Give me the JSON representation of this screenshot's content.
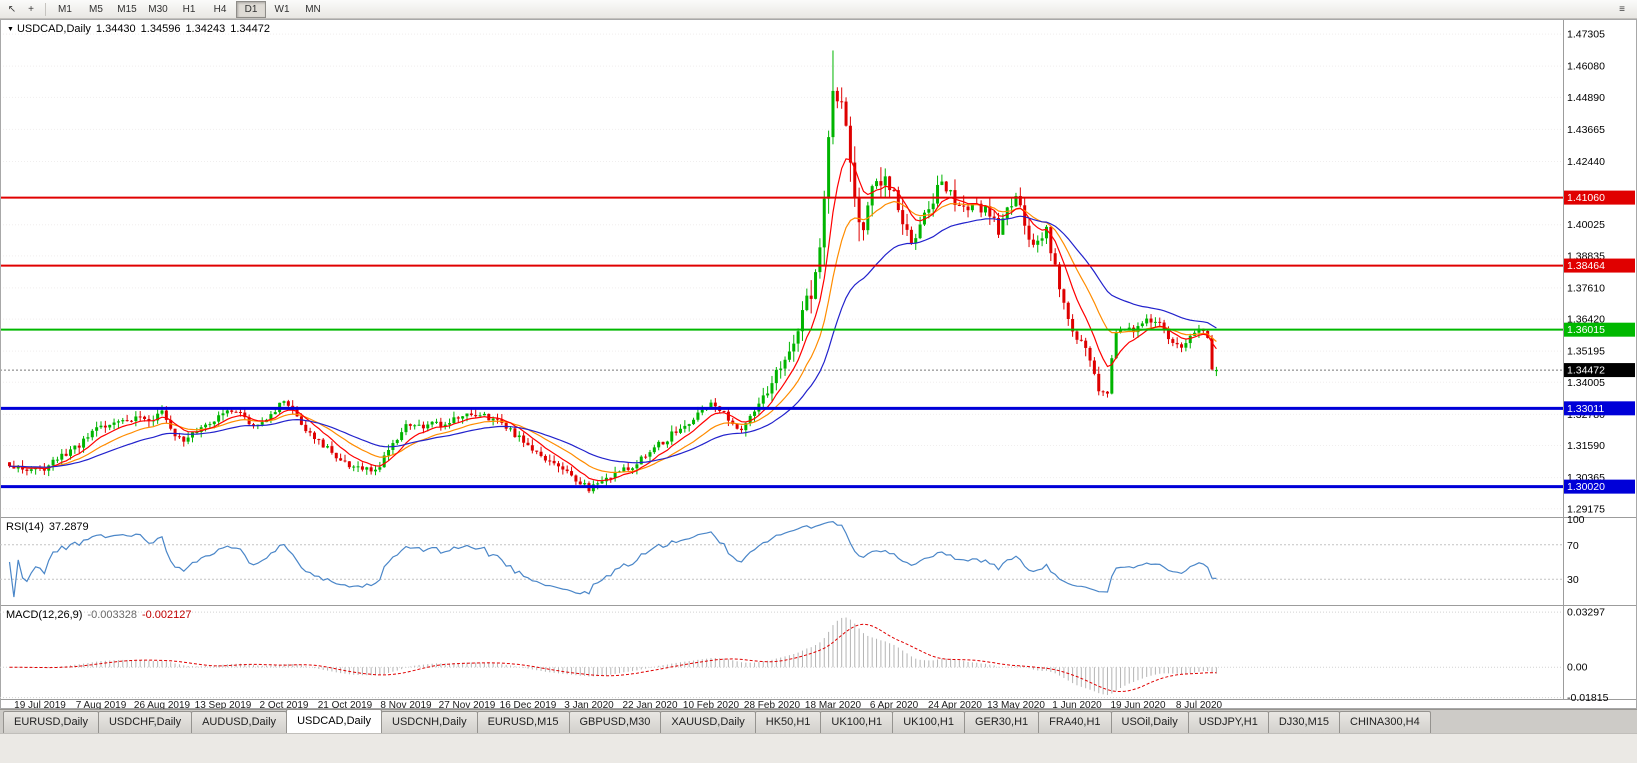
{
  "toolbar": {
    "cursor_icon": "↖",
    "crosshair_icon": "+",
    "right_icon": "≡",
    "timeframes": [
      {
        "label": "M1",
        "active": false
      },
      {
        "label": "M5",
        "active": false
      },
      {
        "label": "M15",
        "active": false
      },
      {
        "label": "M30",
        "active": false
      },
      {
        "label": "H1",
        "active": false
      },
      {
        "label": "H4",
        "active": false
      },
      {
        "label": "D1",
        "active": true
      },
      {
        "label": "W1",
        "active": false
      },
      {
        "label": "MN",
        "active": false
      }
    ]
  },
  "chart": {
    "symbol_header": {
      "dropdown_icon": "▼",
      "symbol": "USDCAD,Daily",
      "open": "1.34430",
      "high": "1.34596",
      "low": "1.34243",
      "close": "1.34472"
    },
    "price_axis": {
      "ticks": [
        {
          "label": "1.47305",
          "value": 1.47305
        },
        {
          "label": "1.46080",
          "value": 1.4608
        },
        {
          "label": "1.44890",
          "value": 1.4489
        },
        {
          "label": "1.43665",
          "value": 1.43665
        },
        {
          "label": "1.42440",
          "value": 1.4244
        },
        {
          "label": "1.40025",
          "value": 1.40025
        },
        {
          "label": "1.38835",
          "value": 1.38835
        },
        {
          "label": "1.37610",
          "value": 1.3761
        },
        {
          "label": "1.36420",
          "value": 1.3642
        },
        {
          "label": "1.35195",
          "value": 1.35195
        },
        {
          "label": "1.34005",
          "value": 1.34005
        },
        {
          "label": "1.32780",
          "value": 1.3278
        },
        {
          "label": "1.31590",
          "value": 1.3159
        },
        {
          "label": "1.30365",
          "value": 1.30365
        },
        {
          "label": "1.29175",
          "value": 1.29175
        }
      ]
    },
    "hlines": [
      {
        "label": "1.41060",
        "value": 1.4106,
        "color": "#e00000",
        "width": 2
      },
      {
        "label": "1.38464",
        "value": 1.38464,
        "color": "#e00000",
        "width": 2
      },
      {
        "label": "1.36015",
        "value": 1.36015,
        "color": "#00b800",
        "width": 2
      },
      {
        "label": "1.33011",
        "value": 1.33011,
        "color": "#0000d8",
        "width": 3
      },
      {
        "label": "1.30020",
        "value": 1.3002,
        "color": "#0000d8",
        "width": 3
      }
    ],
    "current_price": {
      "label": "1.34472",
      "value": 1.34472,
      "badge_color": "#000000"
    },
    "date_labels": [
      "19 Jul 2019",
      "7 Aug 2019",
      "26 Aug 2019",
      "13 Sep 2019",
      "2 Oct 2019",
      "21 Oct 2019",
      "8 Nov 2019",
      "27 Nov 2019",
      "16 Dec 2019",
      "3 Jan 2020",
      "22 Jan 2020",
      "10 Feb 2020",
      "28 Feb 2020",
      "18 Mar 2020",
      "6 Apr 2020",
      "24 Apr 2020",
      "13 May 2020",
      "1 Jun 2020",
      "19 Jun 2020",
      "8 Jul 2020"
    ]
  },
  "indicators": {
    "rsi": {
      "name": "RSI(14)",
      "value": "37.2879",
      "color": "#4a86c8",
      "axis_labels": [
        {
          "label": "100",
          "value": 100
        },
        {
          "label": "70",
          "value": 70
        },
        {
          "label": "30",
          "value": 30
        }
      ],
      "level_lines": [
        70,
        30
      ]
    },
    "macd": {
      "name": "MACD(12,26,9)",
      "value_main": "-0.003328",
      "value_signal": "-0.002127",
      "hist_color": "#b4b4b4",
      "signal_color": "#e00000",
      "scale_max": 0.036,
      "scale_min": -0.019,
      "axis_labels": [
        {
          "label": "0.03297",
          "value": 0.03297
        },
        {
          "label": "0.00",
          "value": 0.0
        },
        {
          "label": "-0.01815",
          "value": -0.01815
        }
      ]
    }
  },
  "tabs": [
    {
      "label": "EURUSD,Daily",
      "active": false
    },
    {
      "label": "USDCHF,Daily",
      "active": false
    },
    {
      "label": "AUDUSD,Daily",
      "active": false
    },
    {
      "label": "USDCAD,Daily",
      "active": true
    },
    {
      "label": "USDCNH,Daily",
      "active": false
    },
    {
      "label": "EURUSD,M15",
      "active": false
    },
    {
      "label": "GBPUSD,M30",
      "active": false
    },
    {
      "label": "XAUUSD,Daily",
      "active": false
    },
    {
      "label": "HK50,H1",
      "active": false
    },
    {
      "label": "UK100,H1",
      "active": false
    },
    {
      "label": "UK100,H1",
      "active": false
    },
    {
      "label": "GER30,H1",
      "active": false
    },
    {
      "label": "FRA40,H1",
      "active": false
    },
    {
      "label": "USOil,Daily",
      "active": false
    },
    {
      "label": "USDJPY,H1",
      "active": false
    },
    {
      "label": "DJ30,M15",
      "active": false
    },
    {
      "label": "CHINA300,H4",
      "active": false
    }
  ],
  "chart_data": {
    "type": "candlestick",
    "symbol": "USDCAD",
    "timeframe": "Daily",
    "num_candles": 278,
    "price_scale": {
      "top": 1.475,
      "bottom": 1.2886
    },
    "up_color": "#00b400",
    "down_color": "#de0000",
    "ma_lines": [
      {
        "name": "ema-fast",
        "period": 8,
        "color": "#ff0000"
      },
      {
        "name": "ema-mid",
        "period": 17,
        "color": "#ff8c00"
      },
      {
        "name": "ema-slow",
        "period": 34,
        "color": "#2222cc"
      }
    ],
    "ohlc_last": {
      "open": 1.3443,
      "high": 1.34596,
      "low": 1.34243,
      "close": 1.34472
    },
    "spike": {
      "index": 189,
      "high": 1.4668
    },
    "close_anchors": [
      [
        0,
        1.3075
      ],
      [
        7,
        1.306
      ],
      [
        14,
        1.314
      ],
      [
        21,
        1.3225
      ],
      [
        28,
        1.3265
      ],
      [
        35,
        1.328
      ],
      [
        40,
        1.3175
      ],
      [
        42,
        1.322
      ],
      [
        49,
        1.329
      ],
      [
        56,
        1.3245
      ],
      [
        63,
        1.333
      ],
      [
        70,
        1.32
      ],
      [
        77,
        1.3085
      ],
      [
        81,
        1.305
      ],
      [
        84,
        1.306
      ],
      [
        91,
        1.323
      ],
      [
        98,
        1.323
      ],
      [
        105,
        1.328
      ],
      [
        112,
        1.3255
      ],
      [
        119,
        1.3165
      ],
      [
        126,
        1.3085
      ],
      [
        133,
        1.299
      ],
      [
        140,
        1.3055
      ],
      [
        147,
        1.313
      ],
      [
        154,
        1.323
      ],
      [
        161,
        1.3305
      ],
      [
        168,
        1.3225
      ],
      [
        175,
        1.3395
      ],
      [
        182,
        1.366
      ],
      [
        185,
        1.38
      ],
      [
        187,
        1.405
      ],
      [
        189,
        1.45
      ],
      [
        191,
        1.443
      ],
      [
        193,
        1.42
      ],
      [
        196,
        1.399
      ],
      [
        199,
        1.419
      ],
      [
        203,
        1.412
      ],
      [
        207,
        1.395
      ],
      [
        210,
        1.405
      ],
      [
        213,
        1.415
      ],
      [
        217,
        1.4095
      ],
      [
        224,
        1.407
      ],
      [
        227,
        1.398
      ],
      [
        231,
        1.411
      ],
      [
        235,
        1.392
      ],
      [
        238,
        1.3975
      ],
      [
        241,
        1.376
      ],
      [
        245,
        1.3565
      ],
      [
        248,
        1.3495
      ],
      [
        250,
        1.337
      ],
      [
        252,
        1.333
      ],
      [
        254,
        1.359
      ],
      [
        256,
        1.358
      ],
      [
        259,
        1.3605
      ],
      [
        263,
        1.364
      ],
      [
        266,
        1.358
      ],
      [
        270,
        1.3545
      ],
      [
        273,
        1.3595
      ],
      [
        275,
        1.357
      ],
      [
        276,
        1.345
      ],
      [
        277,
        1.34472
      ]
    ],
    "vol_anchors": [
      [
        0,
        0.0042
      ],
      [
        100,
        0.004
      ],
      [
        170,
        0.0045
      ],
      [
        178,
        0.0075
      ],
      [
        183,
        0.0125
      ],
      [
        189,
        0.0165
      ],
      [
        196,
        0.013
      ],
      [
        203,
        0.0095
      ],
      [
        217,
        0.0075
      ],
      [
        231,
        0.0065
      ],
      [
        245,
        0.006
      ],
      [
        255,
        0.005
      ],
      [
        270,
        0.004
      ],
      [
        277,
        0.0038
      ]
    ],
    "close_overrides": {
      "275": 1.357,
      "276": 1.345,
      "277": 1.34472
    }
  }
}
